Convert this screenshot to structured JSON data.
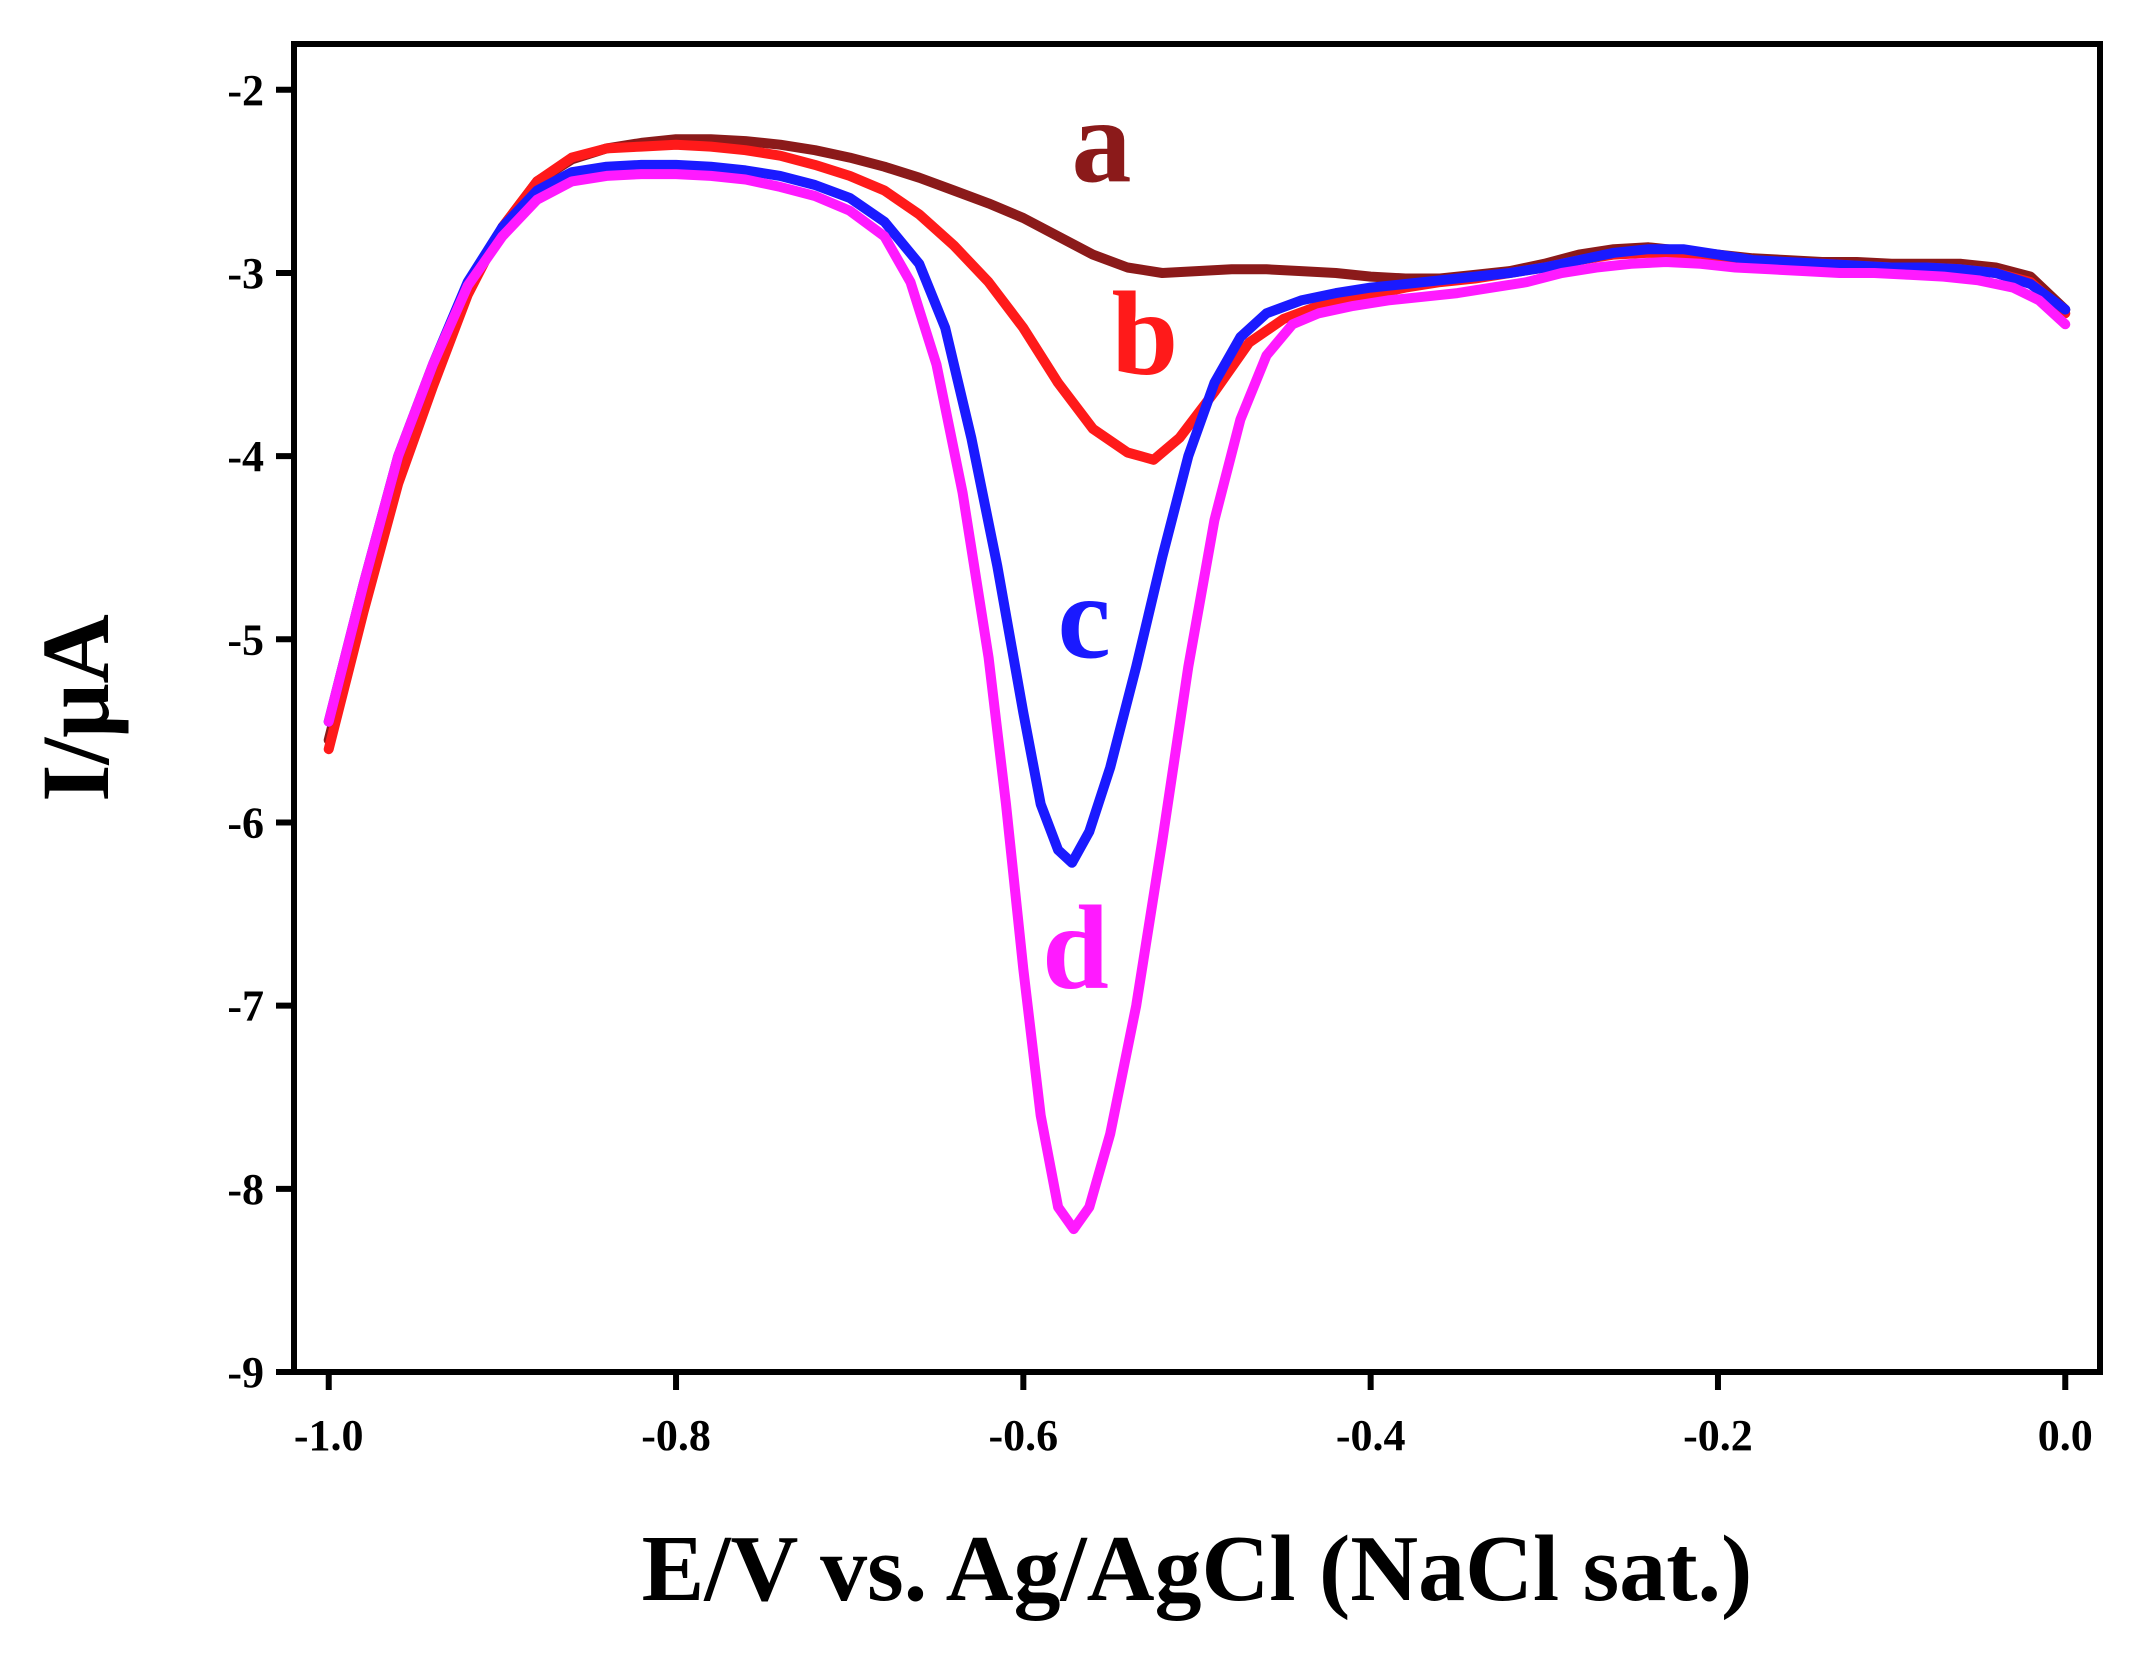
{
  "chart_data": {
    "type": "line",
    "title": "",
    "xlabel": "E/V vs. Ag/AgCl (NaCl sat.)",
    "ylabel": "I/μA",
    "xlim": [
      -1.02,
      0.02
    ],
    "ylim": [
      -9,
      -1.75
    ],
    "x_ticks": [
      -1.0,
      -0.8,
      -0.6,
      -0.4,
      -0.2,
      0.0
    ],
    "x_tick_labels": [
      "-1.0",
      "-0.8",
      "-0.6",
      "-0.4",
      "-0.2",
      "0.0"
    ],
    "y_ticks": [
      -2,
      -3,
      -4,
      -5,
      -6,
      -7,
      -8,
      -9
    ],
    "y_tick_labels": [
      "-2",
      "-3",
      "-4",
      "-5",
      "-6",
      "-7",
      "-8",
      "-9"
    ],
    "grid": false,
    "series": [
      {
        "name": "a",
        "color": "#8b1a1a",
        "label_at": [
          -0.555,
          -2.5
        ],
        "points": [
          [
            -1.0,
            -5.55
          ],
          [
            -0.98,
            -4.8
          ],
          [
            -0.96,
            -4.1
          ],
          [
            -0.94,
            -3.6
          ],
          [
            -0.92,
            -3.1
          ],
          [
            -0.9,
            -2.75
          ],
          [
            -0.88,
            -2.5
          ],
          [
            -0.86,
            -2.38
          ],
          [
            -0.84,
            -2.32
          ],
          [
            -0.82,
            -2.29
          ],
          [
            -0.8,
            -2.27
          ],
          [
            -0.78,
            -2.27
          ],
          [
            -0.76,
            -2.28
          ],
          [
            -0.74,
            -2.3
          ],
          [
            -0.72,
            -2.33
          ],
          [
            -0.7,
            -2.37
          ],
          [
            -0.68,
            -2.42
          ],
          [
            -0.66,
            -2.48
          ],
          [
            -0.64,
            -2.55
          ],
          [
            -0.62,
            -2.62
          ],
          [
            -0.6,
            -2.7
          ],
          [
            -0.58,
            -2.8
          ],
          [
            -0.56,
            -2.9
          ],
          [
            -0.54,
            -2.97
          ],
          [
            -0.52,
            -3.0
          ],
          [
            -0.5,
            -2.99
          ],
          [
            -0.48,
            -2.98
          ],
          [
            -0.46,
            -2.98
          ],
          [
            -0.44,
            -2.99
          ],
          [
            -0.42,
            -3.0
          ],
          [
            -0.4,
            -3.02
          ],
          [
            -0.38,
            -3.03
          ],
          [
            -0.36,
            -3.03
          ],
          [
            -0.34,
            -3.01
          ],
          [
            -0.32,
            -2.99
          ],
          [
            -0.3,
            -2.95
          ],
          [
            -0.28,
            -2.9
          ],
          [
            -0.26,
            -2.87
          ],
          [
            -0.24,
            -2.86
          ],
          [
            -0.22,
            -2.88
          ],
          [
            -0.2,
            -2.9
          ],
          [
            -0.18,
            -2.92
          ],
          [
            -0.16,
            -2.93
          ],
          [
            -0.14,
            -2.94
          ],
          [
            -0.12,
            -2.94
          ],
          [
            -0.1,
            -2.95
          ],
          [
            -0.08,
            -2.95
          ],
          [
            -0.06,
            -2.95
          ],
          [
            -0.04,
            -2.97
          ],
          [
            -0.02,
            -3.02
          ],
          [
            0.0,
            -3.2
          ]
        ]
      },
      {
        "name": "b",
        "color": "#ff1a1a",
        "label_at": [
          -0.53,
          -3.55
        ],
        "points": [
          [
            -1.0,
            -5.6
          ],
          [
            -0.98,
            -4.85
          ],
          [
            -0.96,
            -4.15
          ],
          [
            -0.94,
            -3.62
          ],
          [
            -0.92,
            -3.12
          ],
          [
            -0.9,
            -2.75
          ],
          [
            -0.88,
            -2.5
          ],
          [
            -0.86,
            -2.37
          ],
          [
            -0.84,
            -2.32
          ],
          [
            -0.82,
            -2.31
          ],
          [
            -0.8,
            -2.3
          ],
          [
            -0.78,
            -2.31
          ],
          [
            -0.76,
            -2.33
          ],
          [
            -0.74,
            -2.36
          ],
          [
            -0.72,
            -2.41
          ],
          [
            -0.7,
            -2.47
          ],
          [
            -0.68,
            -2.55
          ],
          [
            -0.66,
            -2.68
          ],
          [
            -0.64,
            -2.85
          ],
          [
            -0.62,
            -3.05
          ],
          [
            -0.6,
            -3.3
          ],
          [
            -0.58,
            -3.6
          ],
          [
            -0.56,
            -3.85
          ],
          [
            -0.54,
            -3.98
          ],
          [
            -0.525,
            -4.02
          ],
          [
            -0.51,
            -3.9
          ],
          [
            -0.49,
            -3.65
          ],
          [
            -0.47,
            -3.38
          ],
          [
            -0.45,
            -3.25
          ],
          [
            -0.43,
            -3.18
          ],
          [
            -0.4,
            -3.12
          ],
          [
            -0.38,
            -3.08
          ],
          [
            -0.36,
            -3.05
          ],
          [
            -0.34,
            -3.03
          ],
          [
            -0.32,
            -3.0
          ],
          [
            -0.3,
            -2.97
          ],
          [
            -0.28,
            -2.93
          ],
          [
            -0.26,
            -2.9
          ],
          [
            -0.24,
            -2.89
          ],
          [
            -0.22,
            -2.9
          ],
          [
            -0.2,
            -2.92
          ],
          [
            -0.18,
            -2.94
          ],
          [
            -0.16,
            -2.95
          ],
          [
            -0.14,
            -2.95
          ],
          [
            -0.12,
            -2.96
          ],
          [
            -0.1,
            -2.97
          ],
          [
            -0.08,
            -2.97
          ],
          [
            -0.06,
            -2.98
          ],
          [
            -0.04,
            -3.0
          ],
          [
            -0.02,
            -3.05
          ],
          [
            0.0,
            -3.22
          ]
        ]
      },
      {
        "name": "c",
        "color": "#1a1aff",
        "label_at": [
          -0.565,
          -5.1
        ],
        "points": [
          [
            -1.0,
            -5.45
          ],
          [
            -0.98,
            -4.7
          ],
          [
            -0.96,
            -4.0
          ],
          [
            -0.94,
            -3.5
          ],
          [
            -0.92,
            -3.05
          ],
          [
            -0.9,
            -2.75
          ],
          [
            -0.88,
            -2.55
          ],
          [
            -0.86,
            -2.45
          ],
          [
            -0.84,
            -2.42
          ],
          [
            -0.82,
            -2.41
          ],
          [
            -0.8,
            -2.41
          ],
          [
            -0.78,
            -2.42
          ],
          [
            -0.76,
            -2.44
          ],
          [
            -0.74,
            -2.47
          ],
          [
            -0.72,
            -2.52
          ],
          [
            -0.7,
            -2.59
          ],
          [
            -0.68,
            -2.72
          ],
          [
            -0.66,
            -2.95
          ],
          [
            -0.645,
            -3.3
          ],
          [
            -0.63,
            -3.9
          ],
          [
            -0.615,
            -4.6
          ],
          [
            -0.6,
            -5.4
          ],
          [
            -0.59,
            -5.9
          ],
          [
            -0.58,
            -6.15
          ],
          [
            -0.572,
            -6.22
          ],
          [
            -0.562,
            -6.05
          ],
          [
            -0.55,
            -5.7
          ],
          [
            -0.535,
            -5.15
          ],
          [
            -0.52,
            -4.55
          ],
          [
            -0.505,
            -4.0
          ],
          [
            -0.49,
            -3.6
          ],
          [
            -0.475,
            -3.35
          ],
          [
            -0.46,
            -3.22
          ],
          [
            -0.44,
            -3.15
          ],
          [
            -0.42,
            -3.11
          ],
          [
            -0.4,
            -3.08
          ],
          [
            -0.38,
            -3.06
          ],
          [
            -0.36,
            -3.04
          ],
          [
            -0.34,
            -3.02
          ],
          [
            -0.32,
            -3.0
          ],
          [
            -0.3,
            -2.97
          ],
          [
            -0.28,
            -2.93
          ],
          [
            -0.26,
            -2.89
          ],
          [
            -0.24,
            -2.87
          ],
          [
            -0.22,
            -2.87
          ],
          [
            -0.2,
            -2.9
          ],
          [
            -0.18,
            -2.93
          ],
          [
            -0.16,
            -2.94
          ],
          [
            -0.14,
            -2.95
          ],
          [
            -0.12,
            -2.96
          ],
          [
            -0.1,
            -2.97
          ],
          [
            -0.08,
            -2.97
          ],
          [
            -0.06,
            -2.98
          ],
          [
            -0.04,
            -3.0
          ],
          [
            -0.02,
            -3.06
          ],
          [
            0.0,
            -3.2
          ]
        ]
      },
      {
        "name": "d",
        "color": "#ff1aff",
        "label_at": [
          -0.57,
          -6.9
        ],
        "points": [
          [
            -1.0,
            -5.45
          ],
          [
            -0.98,
            -4.7
          ],
          [
            -0.96,
            -4.0
          ],
          [
            -0.94,
            -3.5
          ],
          [
            -0.92,
            -3.07
          ],
          [
            -0.9,
            -2.8
          ],
          [
            -0.88,
            -2.6
          ],
          [
            -0.86,
            -2.5
          ],
          [
            -0.84,
            -2.47
          ],
          [
            -0.82,
            -2.46
          ],
          [
            -0.8,
            -2.46
          ],
          [
            -0.78,
            -2.47
          ],
          [
            -0.76,
            -2.49
          ],
          [
            -0.74,
            -2.53
          ],
          [
            -0.72,
            -2.58
          ],
          [
            -0.7,
            -2.66
          ],
          [
            -0.68,
            -2.8
          ],
          [
            -0.665,
            -3.05
          ],
          [
            -0.65,
            -3.5
          ],
          [
            -0.635,
            -4.2
          ],
          [
            -0.62,
            -5.1
          ],
          [
            -0.61,
            -5.9
          ],
          [
            -0.6,
            -6.8
          ],
          [
            -0.59,
            -7.6
          ],
          [
            -0.58,
            -8.1
          ],
          [
            -0.571,
            -8.22
          ],
          [
            -0.562,
            -8.1
          ],
          [
            -0.55,
            -7.7
          ],
          [
            -0.535,
            -7.0
          ],
          [
            -0.52,
            -6.1
          ],
          [
            -0.505,
            -5.15
          ],
          [
            -0.49,
            -4.35
          ],
          [
            -0.475,
            -3.8
          ],
          [
            -0.46,
            -3.45
          ],
          [
            -0.445,
            -3.28
          ],
          [
            -0.43,
            -3.22
          ],
          [
            -0.41,
            -3.18
          ],
          [
            -0.39,
            -3.15
          ],
          [
            -0.37,
            -3.13
          ],
          [
            -0.35,
            -3.11
          ],
          [
            -0.33,
            -3.08
          ],
          [
            -0.31,
            -3.05
          ],
          [
            -0.29,
            -3.0
          ],
          [
            -0.27,
            -2.97
          ],
          [
            -0.25,
            -2.95
          ],
          [
            -0.23,
            -2.94
          ],
          [
            -0.21,
            -2.95
          ],
          [
            -0.19,
            -2.97
          ],
          [
            -0.17,
            -2.98
          ],
          [
            -0.15,
            -2.99
          ],
          [
            -0.13,
            -3.0
          ],
          [
            -0.11,
            -3.0
          ],
          [
            -0.09,
            -3.01
          ],
          [
            -0.07,
            -3.02
          ],
          [
            -0.05,
            -3.04
          ],
          [
            -0.03,
            -3.08
          ],
          [
            -0.015,
            -3.15
          ],
          [
            0.0,
            -3.28
          ]
        ]
      }
    ]
  }
}
